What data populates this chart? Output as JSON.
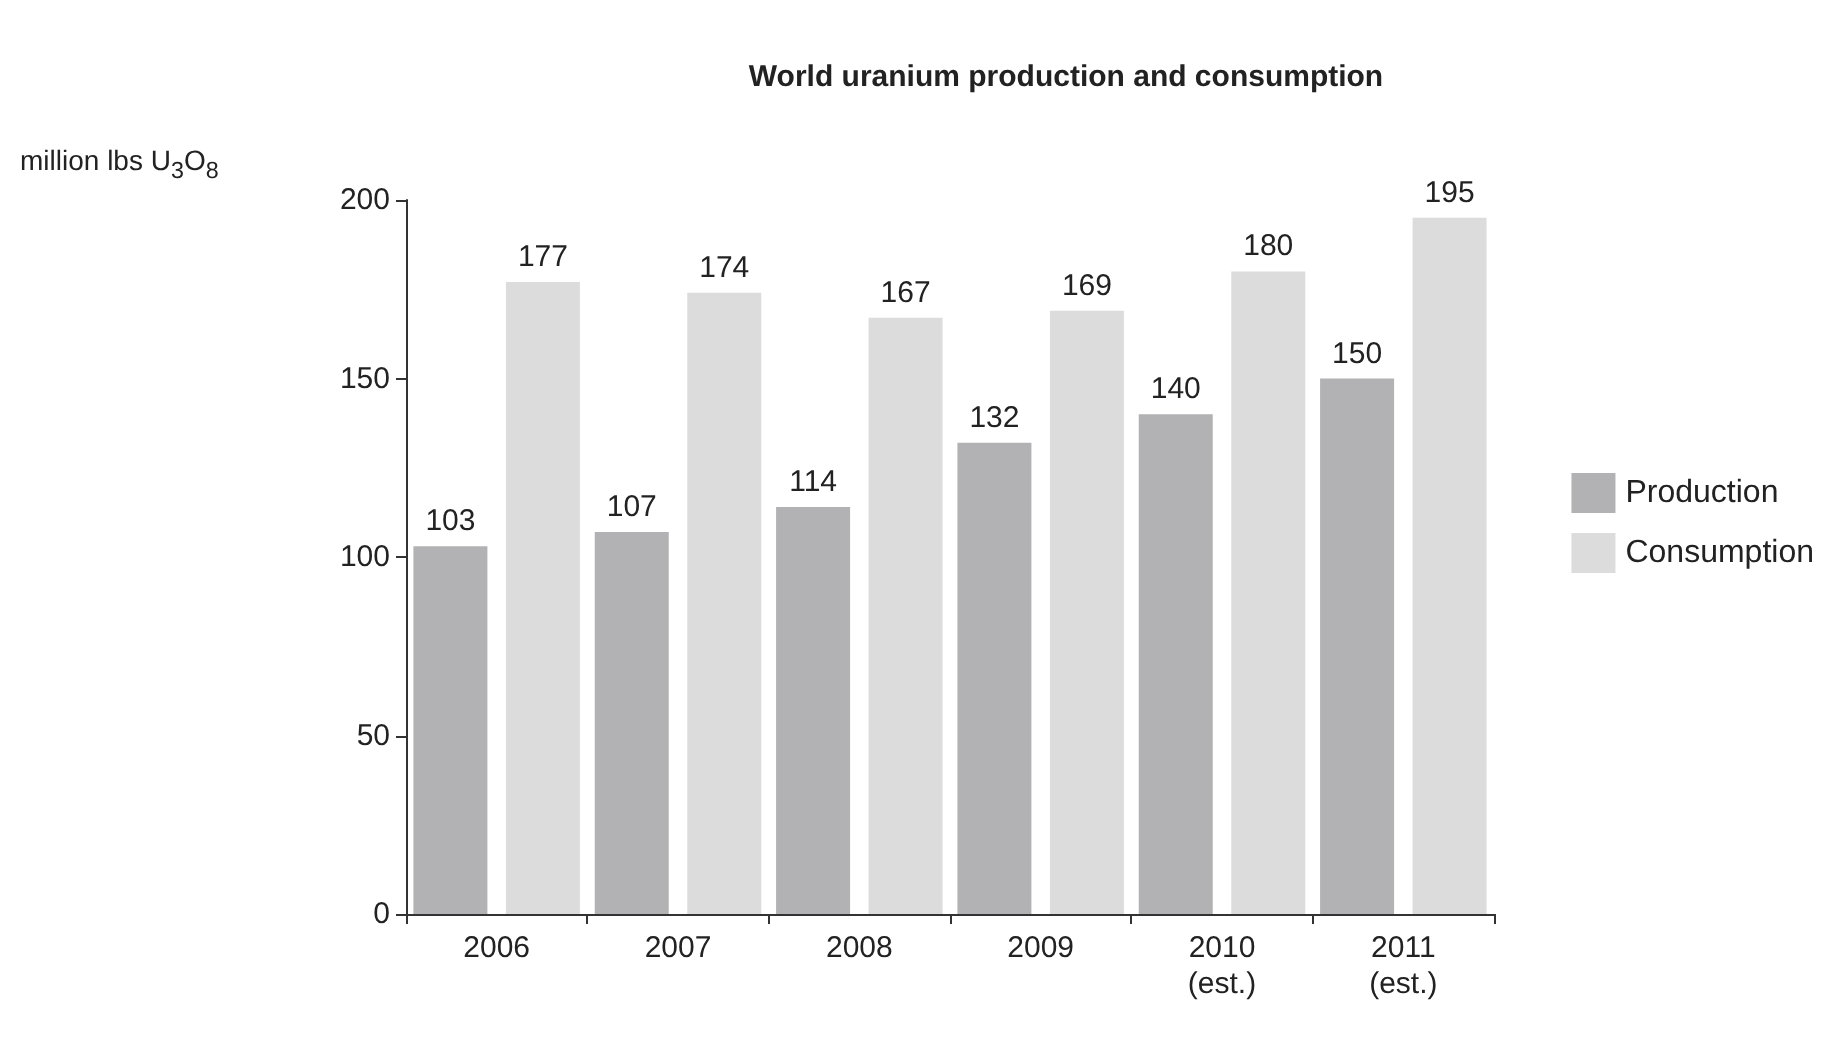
{
  "chart_data": {
    "type": "bar",
    "title": "World uranium production and consumption",
    "ylabel": "million lbs U$_{3}$O$_{8}$",
    "categories": [
      "2006",
      "2007",
      "2008",
      "2009",
      "2010\n(est.)",
      "2011\n(est.)"
    ],
    "series": [
      {
        "name": "Production",
        "color": "#b2b2b4",
        "values": [
          103,
          107,
          114,
          132,
          140,
          150
        ]
      },
      {
        "name": "Consumption",
        "color": "#dcdcdc",
        "values": [
          177,
          174,
          167,
          169,
          180,
          195
        ]
      }
    ],
    "ylim": [
      0,
      200
    ],
    "yticks": [
      0,
      50,
      100,
      150,
      200
    ],
    "grid": false,
    "legend": "right",
    "data_labels": true
  }
}
